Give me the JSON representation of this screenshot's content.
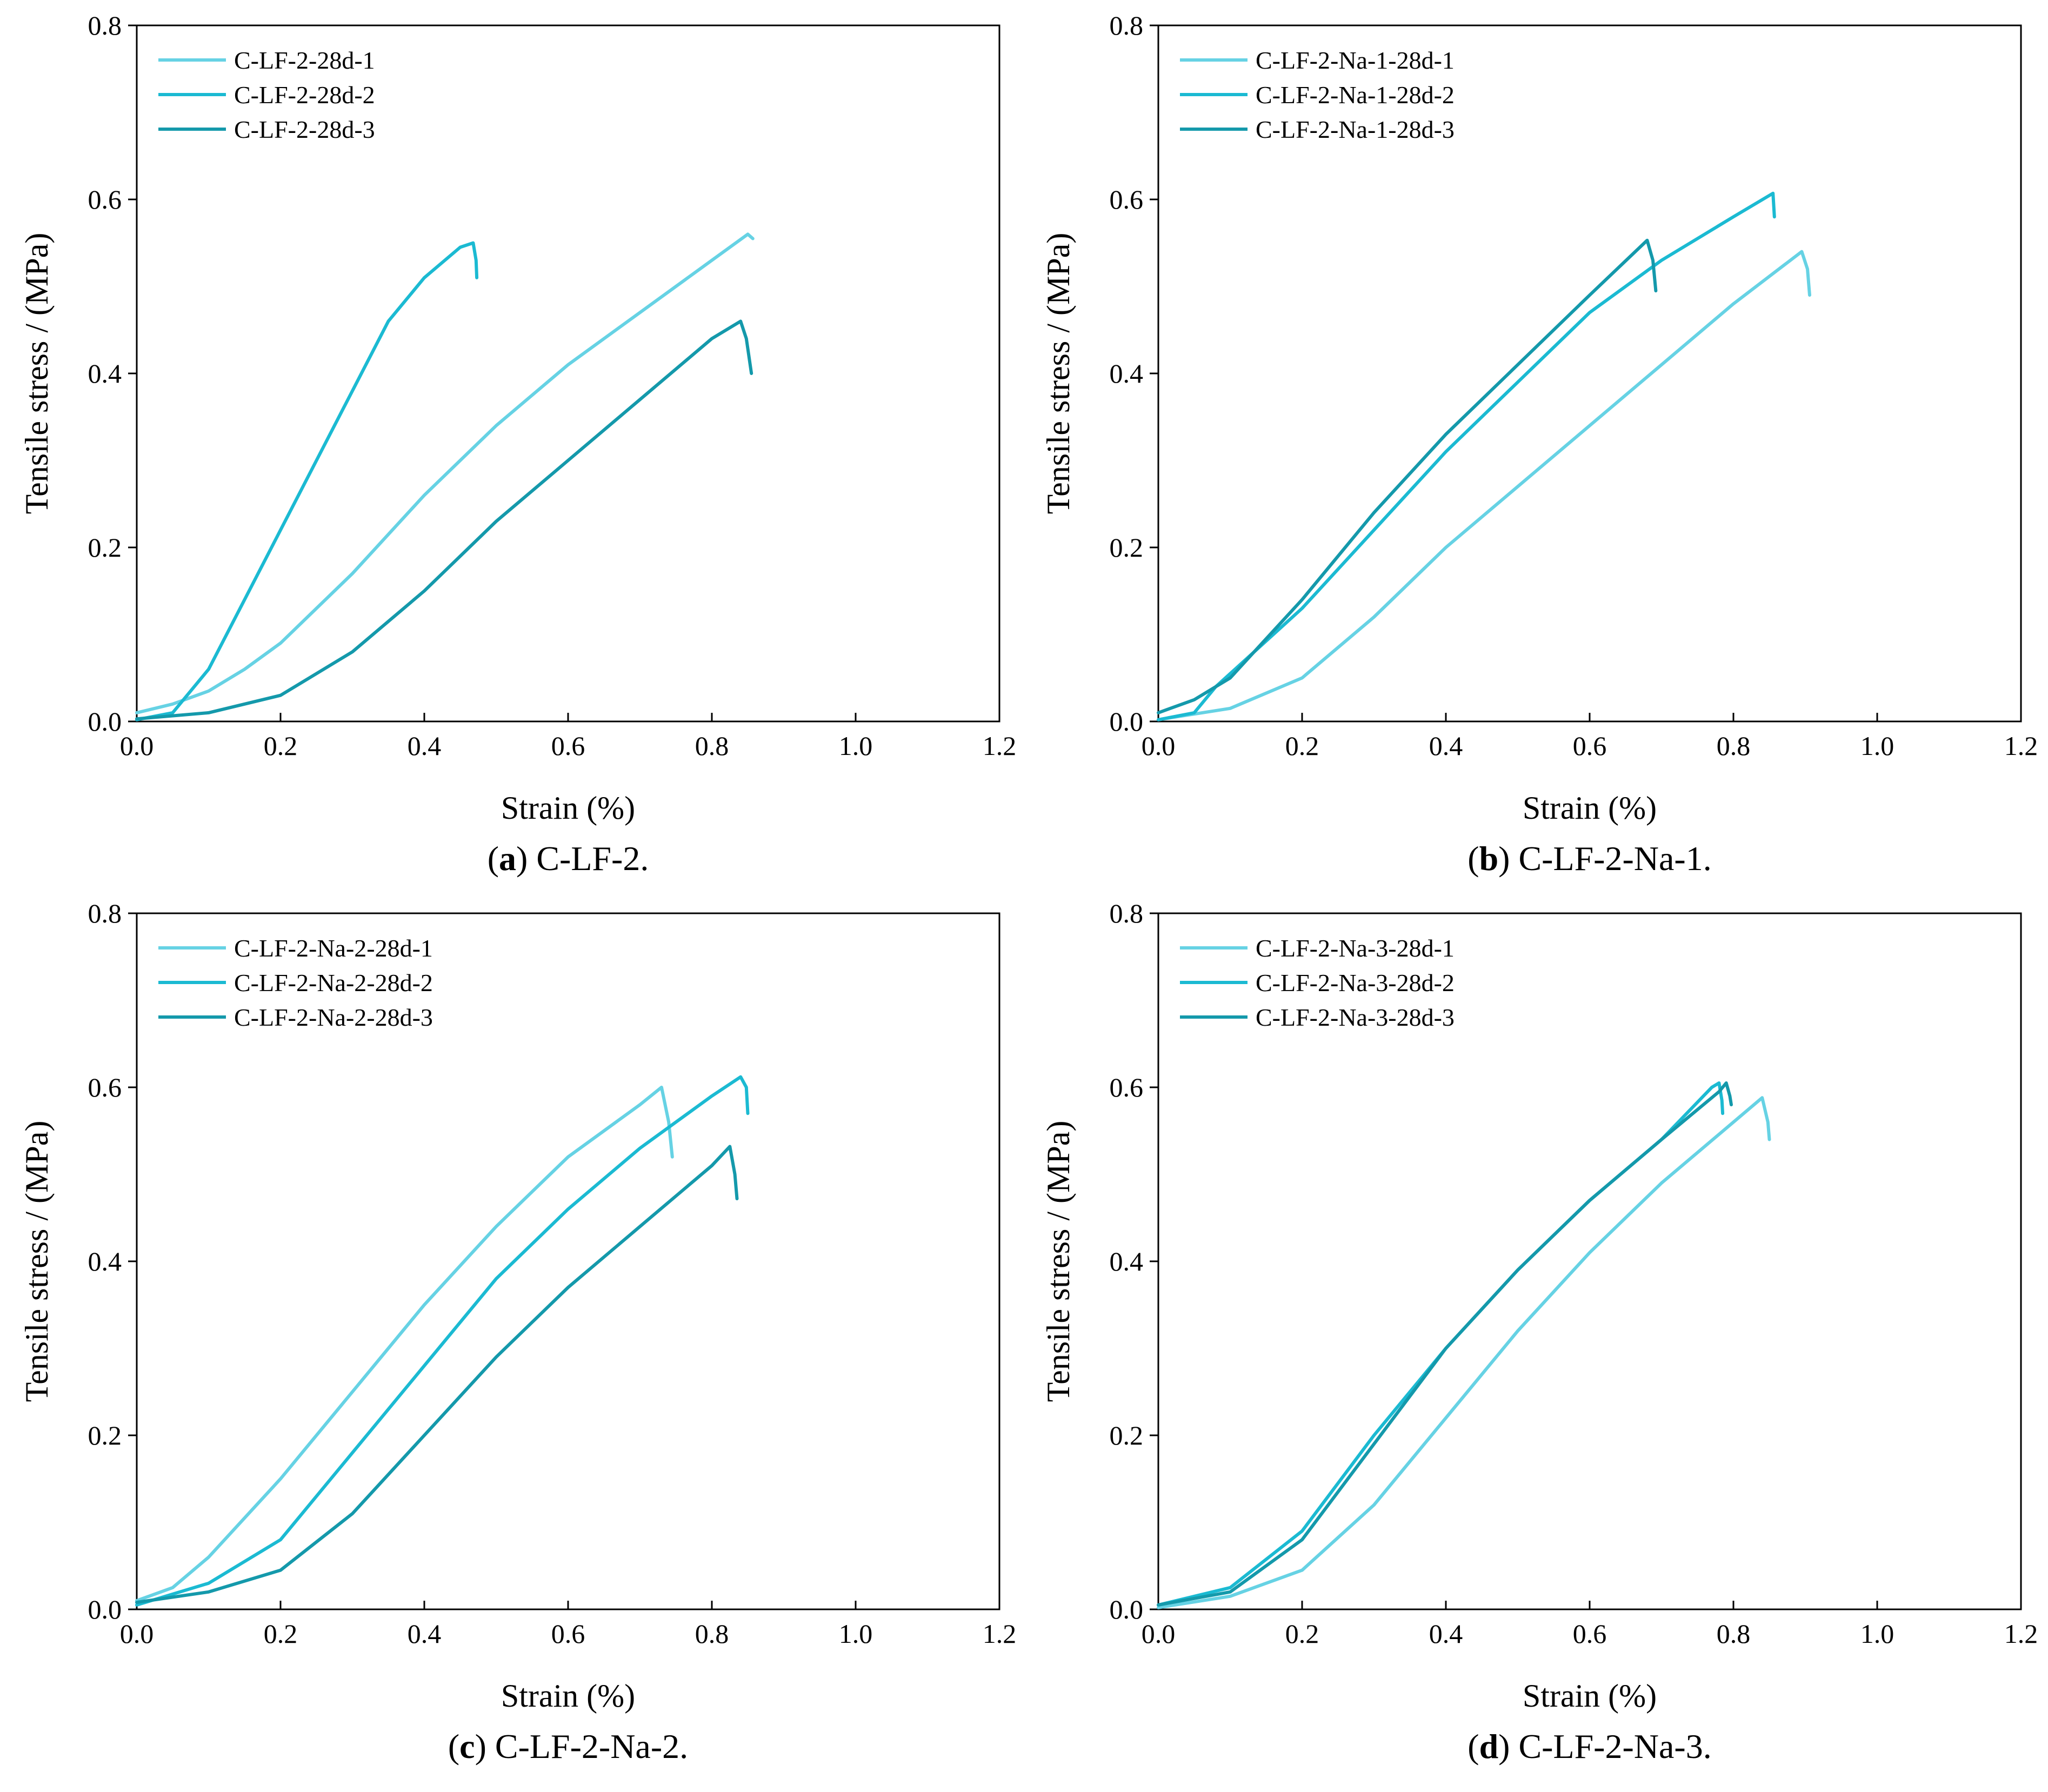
{
  "figure": {
    "panels": [
      {
        "caption_letter": "a",
        "caption_text": "C-LF-2.",
        "legend": [
          "C-LF-2-28d-1",
          "C-LF-2-28d-2",
          "C-LF-2-28d-3"
        ]
      },
      {
        "caption_letter": "b",
        "caption_text": "C-LF-2-Na-1.",
        "legend": [
          "C-LF-2-Na-1-28d-1",
          "C-LF-2-Na-1-28d-2",
          "C-LF-2-Na-1-28d-3"
        ]
      },
      {
        "caption_letter": "c",
        "caption_text": "C-LF-2-Na-2.",
        "legend": [
          "C-LF-2-Na-2-28d-1",
          "C-LF-2-Na-2-28d-2",
          "C-LF-2-Na-2-28d-3"
        ]
      },
      {
        "caption_letter": "d",
        "caption_text": "C-LF-2-Na-3.",
        "legend": [
          "C-LF-2-Na-3-28d-1",
          "C-LF-2-Na-3-28d-2",
          "C-LF-2-Na-3-28d-3"
        ]
      }
    ]
  },
  "colors": {
    "series": [
      "#66d2e4",
      "#1bbad2",
      "#1499ab"
    ],
    "axis": "#000000"
  },
  "chart_data": [
    {
      "type": "line",
      "title": "",
      "xlabel": "Strain (%)",
      "ylabel": "Tensile stress / (MPa)",
      "xlim": [
        0,
        1.2
      ],
      "ylim": [
        0,
        0.8
      ],
      "xticks": [
        0,
        0.2,
        0.4,
        0.6,
        0.8,
        1.0,
        1.2
      ],
      "xtick_labels": [
        "0.0",
        "0.2",
        "0.4",
        "0.6",
        "0.8",
        "1.0",
        "1.2"
      ],
      "yticks": [
        0,
        0.2,
        0.4,
        0.6,
        0.8
      ],
      "ytick_labels": [
        "0.0",
        "0.2",
        "0.4",
        "0.6",
        "0.8"
      ],
      "legend_position": "top-left",
      "series": [
        {
          "name": "C-LF-2-28d-1",
          "points": [
            [
              0,
              0.01
            ],
            [
              0.05,
              0.02
            ],
            [
              0.1,
              0.035
            ],
            [
              0.15,
              0.06
            ],
            [
              0.2,
              0.09
            ],
            [
              0.3,
              0.17
            ],
            [
              0.4,
              0.26
            ],
            [
              0.5,
              0.34
            ],
            [
              0.6,
              0.41
            ],
            [
              0.7,
              0.47
            ],
            [
              0.8,
              0.53
            ],
            [
              0.85,
              0.56
            ],
            [
              0.857,
              0.555
            ]
          ]
        },
        {
          "name": "C-LF-2-28d-2",
          "points": [
            [
              0,
              0.002
            ],
            [
              0.05,
              0.01
            ],
            [
              0.1,
              0.06
            ],
            [
              0.15,
              0.14
            ],
            [
              0.2,
              0.22
            ],
            [
              0.25,
              0.3
            ],
            [
              0.3,
              0.38
            ],
            [
              0.35,
              0.46
            ],
            [
              0.4,
              0.51
            ],
            [
              0.45,
              0.545
            ],
            [
              0.468,
              0.55
            ],
            [
              0.472,
              0.53
            ],
            [
              0.473,
              0.51
            ]
          ]
        },
        {
          "name": "C-LF-2-28d-3",
          "points": [
            [
              0,
              0.003
            ],
            [
              0.1,
              0.01
            ],
            [
              0.2,
              0.03
            ],
            [
              0.3,
              0.08
            ],
            [
              0.4,
              0.15
            ],
            [
              0.5,
              0.23
            ],
            [
              0.6,
              0.3
            ],
            [
              0.7,
              0.37
            ],
            [
              0.8,
              0.44
            ],
            [
              0.84,
              0.46
            ],
            [
              0.848,
              0.44
            ],
            [
              0.855,
              0.4
            ]
          ]
        }
      ]
    },
    {
      "type": "line",
      "title": "",
      "xlabel": "Strain (%)",
      "ylabel": "Tensile stress / (MPa)",
      "xlim": [
        0,
        1.2
      ],
      "ylim": [
        0,
        0.8
      ],
      "xticks": [
        0,
        0.2,
        0.4,
        0.6,
        0.8,
        1.0,
        1.2
      ],
      "xtick_labels": [
        "0.0",
        "0.2",
        "0.4",
        "0.6",
        "0.8",
        "1.0",
        "1.2"
      ],
      "yticks": [
        0,
        0.2,
        0.4,
        0.6,
        0.8
      ],
      "ytick_labels": [
        "0.0",
        "0.2",
        "0.4",
        "0.6",
        "0.8"
      ],
      "legend_position": "top-left",
      "series": [
        {
          "name": "C-LF-2-Na-1-28d-1",
          "points": [
            [
              0,
              0.002
            ],
            [
              0.1,
              0.015
            ],
            [
              0.2,
              0.05
            ],
            [
              0.3,
              0.12
            ],
            [
              0.4,
              0.2
            ],
            [
              0.5,
              0.27
            ],
            [
              0.6,
              0.34
            ],
            [
              0.7,
              0.41
            ],
            [
              0.8,
              0.48
            ],
            [
              0.895,
              0.54
            ],
            [
              0.903,
              0.52
            ],
            [
              0.906,
              0.49
            ]
          ]
        },
        {
          "name": "C-LF-2-Na-1-28d-2",
          "points": [
            [
              0,
              0.002
            ],
            [
              0.05,
              0.01
            ],
            [
              0.08,
              0.04
            ],
            [
              0.1,
              0.055
            ],
            [
              0.2,
              0.13
            ],
            [
              0.3,
              0.22
            ],
            [
              0.4,
              0.31
            ],
            [
              0.5,
              0.39
            ],
            [
              0.6,
              0.47
            ],
            [
              0.7,
              0.53
            ],
            [
              0.8,
              0.58
            ],
            [
              0.855,
              0.607
            ],
            [
              0.857,
              0.58
            ]
          ]
        },
        {
          "name": "C-LF-2-Na-1-28d-3",
          "points": [
            [
              0,
              0.01
            ],
            [
              0.05,
              0.025
            ],
            [
              0.1,
              0.05
            ],
            [
              0.2,
              0.14
            ],
            [
              0.3,
              0.24
            ],
            [
              0.4,
              0.33
            ],
            [
              0.5,
              0.41
            ],
            [
              0.6,
              0.49
            ],
            [
              0.68,
              0.553
            ],
            [
              0.688,
              0.53
            ],
            [
              0.692,
              0.495
            ]
          ]
        }
      ]
    },
    {
      "type": "line",
      "title": "",
      "xlabel": "Strain (%)",
      "ylabel": "Tensile stress / (MPa)",
      "xlim": [
        0,
        1.2
      ],
      "ylim": [
        0,
        0.8
      ],
      "xticks": [
        0,
        0.2,
        0.4,
        0.6,
        0.8,
        1.0,
        1.2
      ],
      "xtick_labels": [
        "0.0",
        "0.2",
        "0.4",
        "0.6",
        "0.8",
        "1.0",
        "1.2"
      ],
      "yticks": [
        0,
        0.2,
        0.4,
        0.6,
        0.8
      ],
      "ytick_labels": [
        "0.0",
        "0.2",
        "0.4",
        "0.6",
        "0.8"
      ],
      "legend_position": "top-left",
      "series": [
        {
          "name": "C-LF-2-Na-2-28d-1",
          "points": [
            [
              0,
              0.01
            ],
            [
              0.05,
              0.025
            ],
            [
              0.1,
              0.06
            ],
            [
              0.2,
              0.15
            ],
            [
              0.3,
              0.25
            ],
            [
              0.4,
              0.35
            ],
            [
              0.5,
              0.44
            ],
            [
              0.6,
              0.52
            ],
            [
              0.7,
              0.58
            ],
            [
              0.73,
              0.6
            ],
            [
              0.74,
              0.56
            ],
            [
              0.745,
              0.52
            ]
          ]
        },
        {
          "name": "C-LF-2-Na-2-28d-2",
          "points": [
            [
              0,
              0.005
            ],
            [
              0.1,
              0.03
            ],
            [
              0.2,
              0.08
            ],
            [
              0.3,
              0.18
            ],
            [
              0.4,
              0.28
            ],
            [
              0.5,
              0.38
            ],
            [
              0.6,
              0.46
            ],
            [
              0.7,
              0.53
            ],
            [
              0.8,
              0.59
            ],
            [
              0.84,
              0.612
            ],
            [
              0.848,
              0.6
            ],
            [
              0.85,
              0.57
            ]
          ]
        },
        {
          "name": "C-LF-2-Na-2-28d-3",
          "points": [
            [
              0,
              0.008
            ],
            [
              0.1,
              0.02
            ],
            [
              0.2,
              0.045
            ],
            [
              0.3,
              0.11
            ],
            [
              0.4,
              0.2
            ],
            [
              0.5,
              0.29
            ],
            [
              0.6,
              0.37
            ],
            [
              0.7,
              0.44
            ],
            [
              0.8,
              0.51
            ],
            [
              0.825,
              0.532
            ],
            [
              0.832,
              0.5
            ],
            [
              0.835,
              0.472
            ]
          ]
        }
      ]
    },
    {
      "type": "line",
      "title": "",
      "xlabel": "Strain (%)",
      "ylabel": "Tensile stress / (MPa)",
      "xlim": [
        0,
        1.2
      ],
      "ylim": [
        0,
        0.8
      ],
      "xticks": [
        0,
        0.2,
        0.4,
        0.6,
        0.8,
        1.0,
        1.2
      ],
      "xtick_labels": [
        "0.0",
        "0.2",
        "0.4",
        "0.6",
        "0.8",
        "1.0",
        "1.2"
      ],
      "yticks": [
        0,
        0.2,
        0.4,
        0.6,
        0.8
      ],
      "ytick_labels": [
        "0.0",
        "0.2",
        "0.4",
        "0.6",
        "0.8"
      ],
      "legend_position": "top-left",
      "series": [
        {
          "name": "C-LF-2-Na-3-28d-1",
          "points": [
            [
              0,
              0.002
            ],
            [
              0.1,
              0.015
            ],
            [
              0.2,
              0.045
            ],
            [
              0.3,
              0.12
            ],
            [
              0.4,
              0.22
            ],
            [
              0.5,
              0.32
            ],
            [
              0.6,
              0.41
            ],
            [
              0.7,
              0.49
            ],
            [
              0.8,
              0.56
            ],
            [
              0.84,
              0.588
            ],
            [
              0.848,
              0.56
            ],
            [
              0.85,
              0.54
            ]
          ]
        },
        {
          "name": "C-LF-2-Na-3-28d-2",
          "points": [
            [
              0,
              0.005
            ],
            [
              0.1,
              0.025
            ],
            [
              0.2,
              0.09
            ],
            [
              0.3,
              0.2
            ],
            [
              0.4,
              0.3
            ],
            [
              0.5,
              0.39
            ],
            [
              0.6,
              0.47
            ],
            [
              0.7,
              0.54
            ],
            [
              0.77,
              0.6
            ],
            [
              0.78,
              0.605
            ],
            [
              0.784,
              0.585
            ],
            [
              0.785,
              0.57
            ]
          ]
        },
        {
          "name": "C-LF-2-Na-3-28d-3",
          "points": [
            [
              0,
              0.005
            ],
            [
              0.1,
              0.02
            ],
            [
              0.2,
              0.08
            ],
            [
              0.3,
              0.19
            ],
            [
              0.4,
              0.3
            ],
            [
              0.5,
              0.39
            ],
            [
              0.6,
              0.47
            ],
            [
              0.7,
              0.54
            ],
            [
              0.78,
              0.595
            ],
            [
              0.79,
              0.605
            ],
            [
              0.795,
              0.59
            ],
            [
              0.797,
              0.58
            ]
          ]
        }
      ]
    }
  ]
}
